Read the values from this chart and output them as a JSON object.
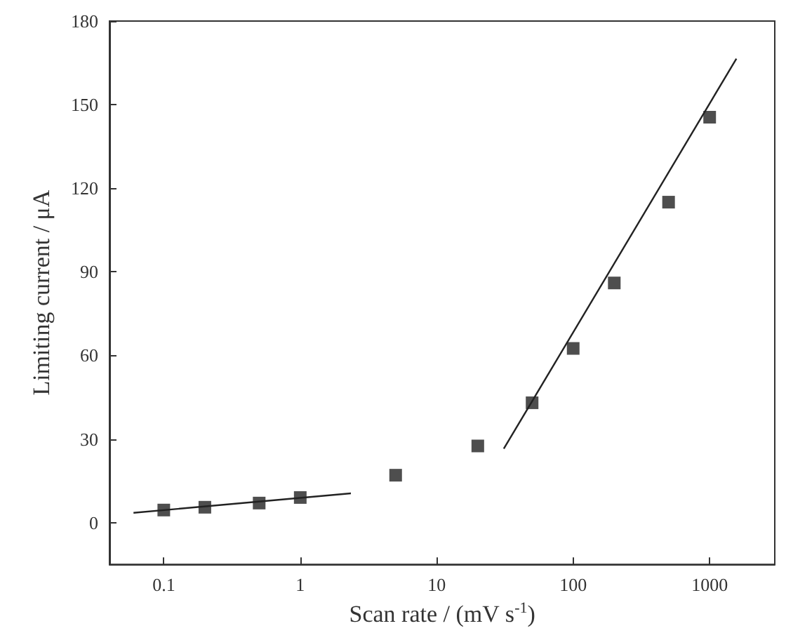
{
  "chart_data": {
    "type": "scatter",
    "xlabel": "Scan rate / (mV s$^{-1}$)",
    "ylabel": "Limiting current / μA",
    "log": "x",
    "xlim": [
      0.04,
      3000
    ],
    "xticks": [
      0.1,
      1,
      10,
      100,
      1000
    ],
    "ylim": [
      -15,
      180
    ],
    "yticks": [
      0,
      30,
      60,
      90,
      120,
      150,
      180
    ],
    "grid": false,
    "series": [
      {
        "marker": "square",
        "color": "#222222",
        "x": [
          0.1,
          0.2,
          0.5,
          1,
          5,
          20,
          50,
          100,
          200,
          500,
          1000
        ],
        "values": [
          4.5,
          5.5,
          7,
          9,
          17,
          27.5,
          43,
          62.5,
          86,
          115,
          145.5
        ]
      },
      {
        "type": "line",
        "color": "#222222",
        "x": [
          0.06,
          2.35
        ],
        "values": [
          3.5,
          10.5
        ]
      },
      {
        "type": "line",
        "color": "#222222",
        "x": [
          31,
          1570
        ],
        "values": [
          26.5,
          166.5
        ]
      }
    ]
  }
}
